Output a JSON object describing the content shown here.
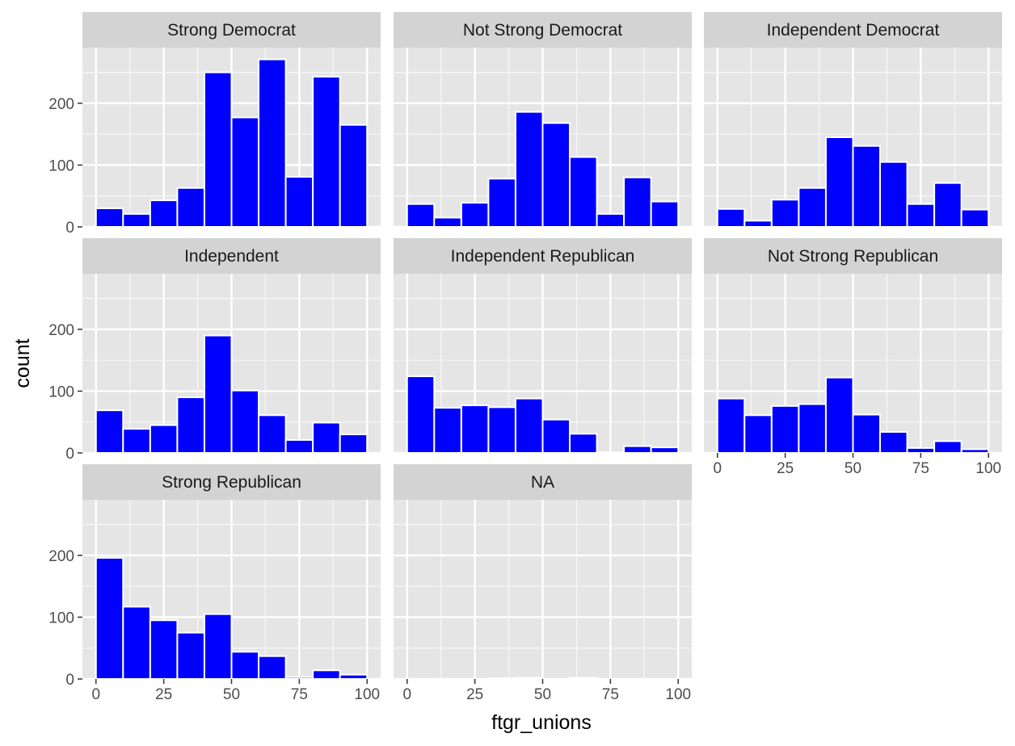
{
  "chart_data": {
    "type": "bar",
    "subtype": "faceted-histogram",
    "xlabel": "ftgr_unions",
    "ylabel": "count",
    "xlim": [
      -5,
      105
    ],
    "ylim": [
      0,
      290
    ],
    "x_ticks": [
      0,
      25,
      50,
      75,
      100
    ],
    "y_ticks": [
      0,
      100,
      200
    ],
    "bin_width": 10,
    "bin_centers": [
      5,
      15,
      25,
      35,
      45,
      55,
      65,
      75,
      85,
      95
    ],
    "grid": true,
    "fill_color": "#0000ff",
    "bar_outline": "#ffffff",
    "panel_background": "#e5e5e5",
    "strip_background": "#d3d3d3",
    "facets": [
      {
        "name": "Strong Democrat",
        "values": [
          30,
          21,
          43,
          63,
          250,
          177,
          271,
          81,
          243,
          165
        ]
      },
      {
        "name": "Not Strong Democrat",
        "values": [
          37,
          15,
          39,
          78,
          186,
          168,
          113,
          21,
          80,
          41
        ]
      },
      {
        "name": "Independent Democrat",
        "values": [
          29,
          10,
          44,
          63,
          145,
          131,
          105,
          37,
          71,
          28
        ]
      },
      {
        "name": "Independent",
        "values": [
          69,
          39,
          45,
          90,
          190,
          101,
          61,
          21,
          49,
          30
        ]
      },
      {
        "name": "Independent Republican",
        "values": [
          124,
          73,
          77,
          74,
          88,
          54,
          31,
          1,
          11,
          9
        ]
      },
      {
        "name": "Not Strong Republican",
        "values": [
          88,
          61,
          76,
          79,
          122,
          62,
          34,
          8,
          19,
          6
        ]
      },
      {
        "name": "Strong Republican",
        "values": [
          196,
          117,
          95,
          75,
          105,
          44,
          37,
          3,
          14,
          7
        ]
      },
      {
        "name": "NA",
        "values": [
          0,
          0,
          0,
          1,
          2,
          0,
          2,
          0,
          0,
          0
        ]
      }
    ]
  }
}
